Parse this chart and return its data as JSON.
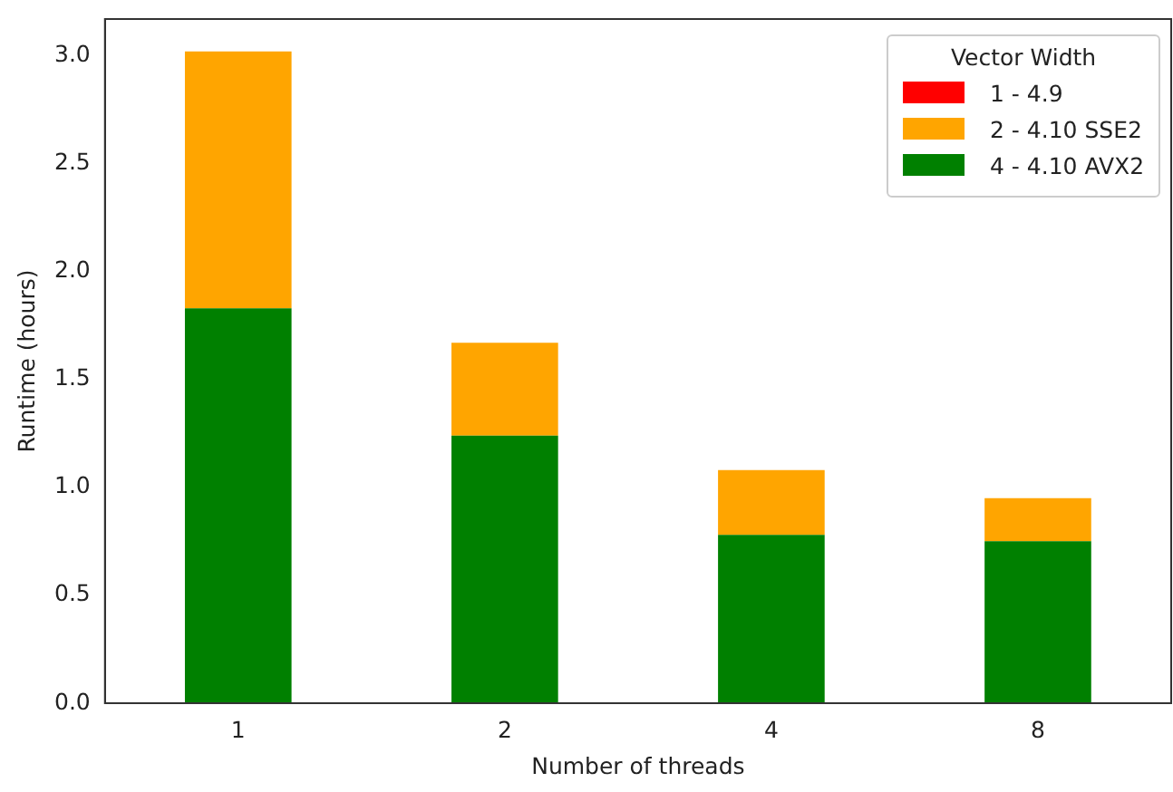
{
  "chart_data": {
    "type": "bar",
    "xlabel": "Number of threads",
    "ylabel": "Runtime (hours)",
    "legend_title": "Vector Width",
    "categories": [
      "1",
      "2",
      "4",
      "8"
    ],
    "stacked": true,
    "series": [
      {
        "name": "4 - 4.10 AVX2",
        "color": "#008000",
        "values": [
          1.83,
          1.24,
          0.78,
          0.75
        ]
      },
      {
        "name": "2 - 4.10 SSE2",
        "color": "#ffa500",
        "values": [
          1.19,
          0.43,
          0.3,
          0.2
        ]
      },
      {
        "name": "1 - 4.9",
        "color": "#ff0000",
        "values": [
          null,
          null,
          null,
          null
        ]
      }
    ],
    "ylim": [
      0,
      3.17
    ],
    "yticks": [
      {
        "value": 0,
        "label": "0.0"
      },
      {
        "value": 0.5,
        "label": "0.5"
      },
      {
        "value": 1,
        "label": "1.0"
      },
      {
        "value": 1.5,
        "label": "1.5"
      },
      {
        "value": 2,
        "label": "2.0"
      },
      {
        "value": 2.5,
        "label": "2.5"
      },
      {
        "value": 3,
        "label": "3.0"
      }
    ],
    "grid": false,
    "legend": "top right"
  }
}
